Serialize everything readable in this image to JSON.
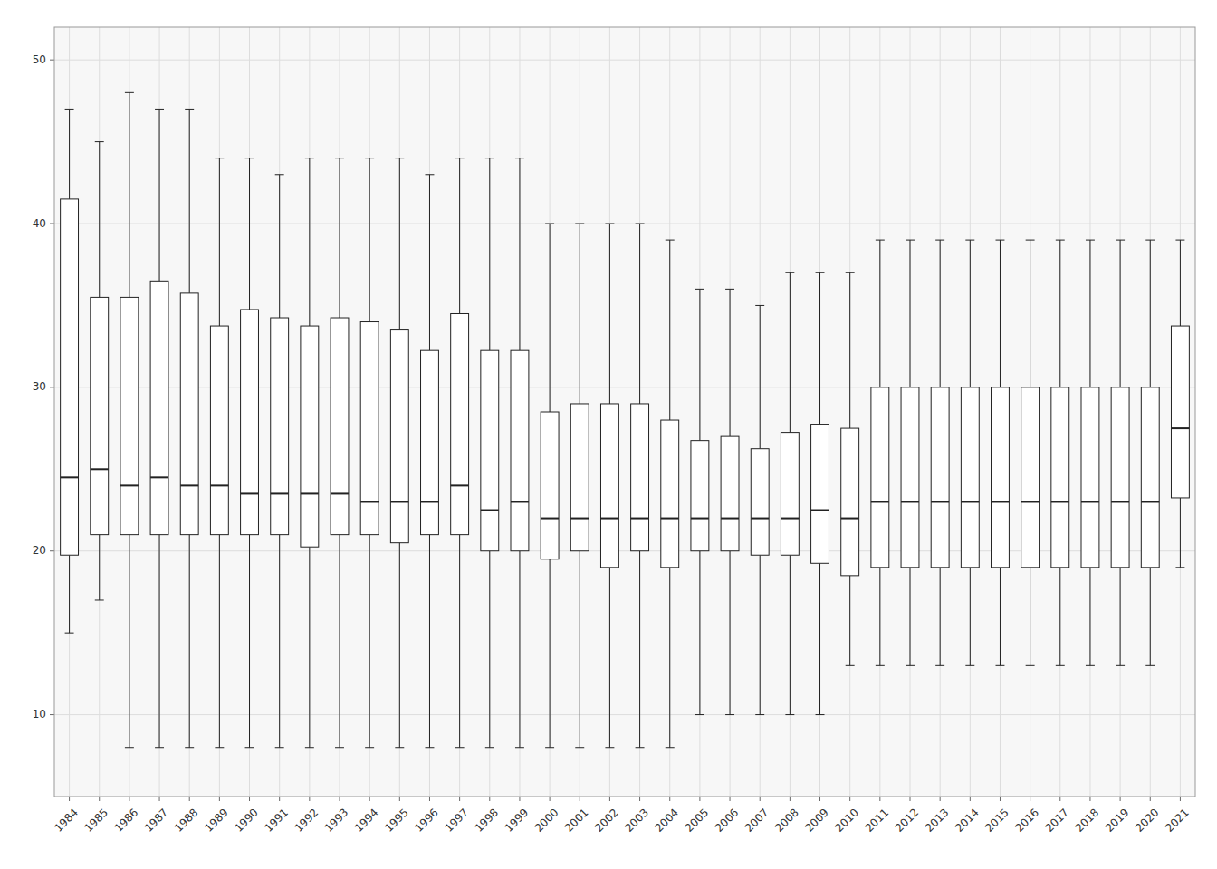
{
  "chart_data": {
    "type": "box",
    "categories": [
      "1984",
      "1985",
      "1986",
      "1987",
      "1988",
      "1989",
      "1990",
      "1991",
      "1992",
      "1993",
      "1994",
      "1995",
      "1996",
      "1997",
      "1998",
      "1999",
      "2000",
      "2001",
      "2002",
      "2003",
      "2004",
      "2005",
      "2006",
      "2007",
      "2008",
      "2009",
      "2010",
      "2011",
      "2012",
      "2013",
      "2014",
      "2015",
      "2016",
      "2017",
      "2018",
      "2019",
      "2020",
      "2021"
    ],
    "whisker_low": [
      15,
      17,
      8,
      8,
      8,
      8,
      8,
      8,
      8,
      8,
      8,
      8,
      8,
      8,
      8,
      8,
      8,
      8,
      8,
      8,
      8,
      10,
      10,
      10,
      10,
      10,
      13,
      13,
      13,
      13,
      13,
      13,
      13,
      13,
      13,
      13,
      13,
      19
    ],
    "q1": [
      19.75,
      21,
      21,
      21,
      21,
      21,
      21,
      21,
      20.25,
      21,
      21,
      20.5,
      21,
      21,
      20,
      20,
      19.5,
      20,
      19,
      20,
      19,
      20,
      20,
      19.75,
      19.75,
      19.25,
      18.5,
      19,
      19,
      19,
      19,
      19,
      19,
      19,
      19,
      19,
      19,
      23.25
    ],
    "median": [
      24.5,
      25,
      24,
      24.5,
      24,
      24,
      23.5,
      23.5,
      23.5,
      23.5,
      23,
      23,
      23,
      24,
      22.5,
      23,
      22,
      22,
      22,
      22,
      22,
      22,
      22,
      22,
      22,
      22.5,
      22,
      23,
      23,
      23,
      23,
      23,
      23,
      23,
      23,
      23,
      23,
      27.5
    ],
    "q3": [
      41.5,
      35.5,
      35.5,
      36.5,
      35.75,
      33.75,
      34.75,
      34.25,
      33.75,
      34.25,
      34,
      33.5,
      32.25,
      34.5,
      32.25,
      32.25,
      28.5,
      29,
      29,
      29,
      28,
      26.75,
      27,
      26.25,
      27.25,
      27.75,
      27.5,
      30,
      30,
      30,
      30,
      30,
      30,
      30,
      30,
      30,
      30,
      33.75
    ],
    "whisker_high": [
      47,
      45,
      48,
      47,
      47,
      44,
      44,
      43,
      44,
      44,
      44,
      44,
      43,
      44,
      44,
      44,
      40,
      40,
      40,
      40,
      39,
      36,
      36,
      35,
      37,
      37,
      37,
      39,
      39,
      39,
      39,
      39,
      39,
      39,
      39,
      39,
      39,
      39
    ],
    "color": "#ffffff",
    "ylim": [
      5,
      52
    ],
    "yticks": [
      10,
      20,
      30,
      40,
      50
    ],
    "grid": true
  }
}
